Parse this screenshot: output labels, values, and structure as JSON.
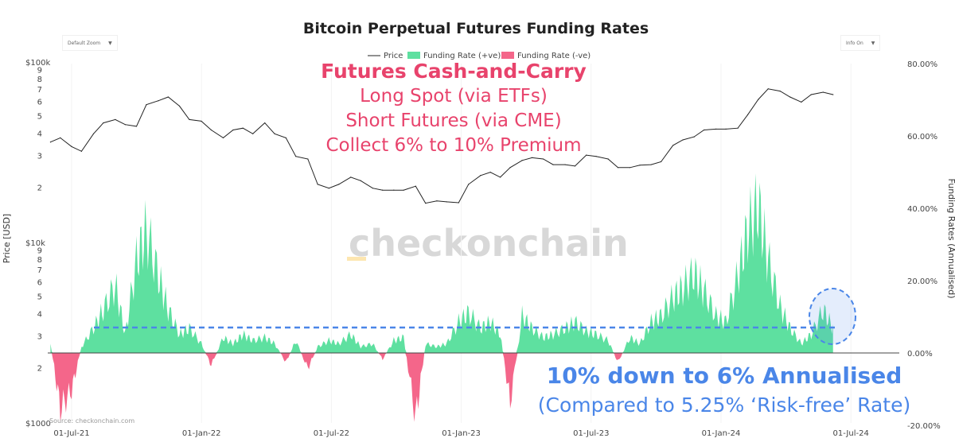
{
  "controls": {
    "zoom_label": "Default Zoom",
    "info_label": "Info On",
    "dropdown_icon": "triangle-down-icon"
  },
  "colors": {
    "price": "#222222",
    "positive": "#5ee0a0",
    "negative": "#f4668a",
    "annotation_red": "#e8436c",
    "annotation_blue": "#4a86e8",
    "watermark": "#d8d8d8"
  },
  "source": "Source: checkonchain.com",
  "watermark": "checkonchain",
  "annotations": {
    "red_title": "Futures Cash-and-Carry",
    "red_lines": [
      "Long Spot (via ETFs)",
      "Short Futures (via CME)",
      "Collect 6% to 10% Premium"
    ],
    "blue_title": "10% down to 6% Annualised",
    "blue_sub": "(Compared to 5.25% ‘Risk-free’ Rate)"
  },
  "chart_data": {
    "type": "line",
    "title": "Bitcoin Perpetual Futures Funding Rates",
    "ylabel": "Price [USD]",
    "y2label": "Funding Rates (Annualised)",
    "legend": [
      "Price",
      "Funding Rate (+ve)",
      "Funding Rate (-ve)"
    ],
    "legend_position": "top-center",
    "x_ticks": [
      "01-Jul-21",
      "01-Jan-22",
      "01-Jul-22",
      "01-Jan-23",
      "01-Jul-23",
      "01-Jan-24",
      "01-Jul-24"
    ],
    "y_ticks": {
      "major": [
        "$1000",
        "$10k",
        "$100k"
      ],
      "minor": [
        "2",
        "3",
        "4",
        "5",
        "6",
        "7",
        "8",
        "9"
      ]
    },
    "y2_ticks": [
      "-20.00%",
      "0.00%",
      "20.00%",
      "40.00%",
      "60.00%",
      "80.00%"
    ],
    "y_scale": "log",
    "ylim": [
      1000,
      100000
    ],
    "y2lim": [
      -20,
      80
    ],
    "reference_line": {
      "value": 7.5,
      "style": "dashed"
    },
    "x": [
      "2021-06-01",
      "2021-06-15",
      "2021-07-01",
      "2021-07-15",
      "2021-08-01",
      "2021-08-15",
      "2021-09-01",
      "2021-09-15",
      "2021-10-01",
      "2021-10-15",
      "2021-11-01",
      "2021-11-15",
      "2021-12-01",
      "2021-12-15",
      "2022-01-01",
      "2022-01-15",
      "2022-02-01",
      "2022-02-15",
      "2022-03-01",
      "2022-03-15",
      "2022-04-01",
      "2022-04-15",
      "2022-05-01",
      "2022-05-15",
      "2022-06-01",
      "2022-06-15",
      "2022-07-01",
      "2022-07-15",
      "2022-08-01",
      "2022-08-15",
      "2022-09-01",
      "2022-09-15",
      "2022-10-01",
      "2022-10-15",
      "2022-11-01",
      "2022-11-15",
      "2022-12-01",
      "2022-12-15",
      "2023-01-01",
      "2023-01-15",
      "2023-02-01",
      "2023-02-15",
      "2023-03-01",
      "2023-03-15",
      "2023-04-01",
      "2023-04-15",
      "2023-05-01",
      "2023-05-15",
      "2023-06-01",
      "2023-06-15",
      "2023-07-01",
      "2023-07-15",
      "2023-08-01",
      "2023-08-15",
      "2023-09-01",
      "2023-09-15",
      "2023-10-01",
      "2023-10-15",
      "2023-11-01",
      "2023-11-15",
      "2023-12-01",
      "2023-12-15",
      "2024-01-01",
      "2024-01-15",
      "2024-02-01",
      "2024-02-15",
      "2024-03-01",
      "2024-03-15",
      "2024-04-01",
      "2024-04-15",
      "2024-05-01",
      "2024-05-15",
      "2024-06-01",
      "2024-06-15"
    ],
    "series": [
      {
        "name": "Price",
        "values": [
          36000,
          38000,
          34000,
          32000,
          40000,
          46000,
          48000,
          45000,
          44000,
          58000,
          61000,
          64000,
          57000,
          48000,
          47000,
          42000,
          38000,
          42000,
          43000,
          40000,
          46000,
          40000,
          38000,
          30000,
          29000,
          21000,
          20000,
          21000,
          23000,
          22000,
          20000,
          19500,
          19500,
          19500,
          20500,
          16500,
          17000,
          16800,
          16600,
          21000,
          23500,
          24500,
          23000,
          26000,
          28500,
          29500,
          29000,
          27000,
          27000,
          26500,
          30500,
          30000,
          29000,
          26000,
          26000,
          26800,
          27000,
          28000,
          34500,
          37000,
          38500,
          42000,
          42500,
          42500,
          43000,
          51000,
          62000,
          71000,
          69000,
          64000,
          60000,
          66000,
          68000,
          66000
        ]
      },
      {
        "name": "Funding Rate",
        "values": [
          3,
          -18,
          -12,
          2,
          8,
          14,
          22,
          6,
          30,
          40,
          25,
          14,
          6,
          8,
          3,
          -4,
          5,
          3,
          6,
          4,
          5,
          3,
          -3,
          4,
          -5,
          2,
          4,
          3,
          6,
          2,
          3,
          -2,
          4,
          5,
          -21,
          3,
          2,
          3,
          10,
          13,
          8,
          10,
          6,
          -16,
          12,
          8,
          5,
          6,
          8,
          10,
          7,
          6,
          4,
          -3,
          5,
          3,
          10,
          12,
          18,
          21,
          26,
          20,
          12,
          10,
          25,
          40,
          48,
          30,
          15,
          8,
          3,
          6,
          14,
          8
        ]
      }
    ]
  }
}
